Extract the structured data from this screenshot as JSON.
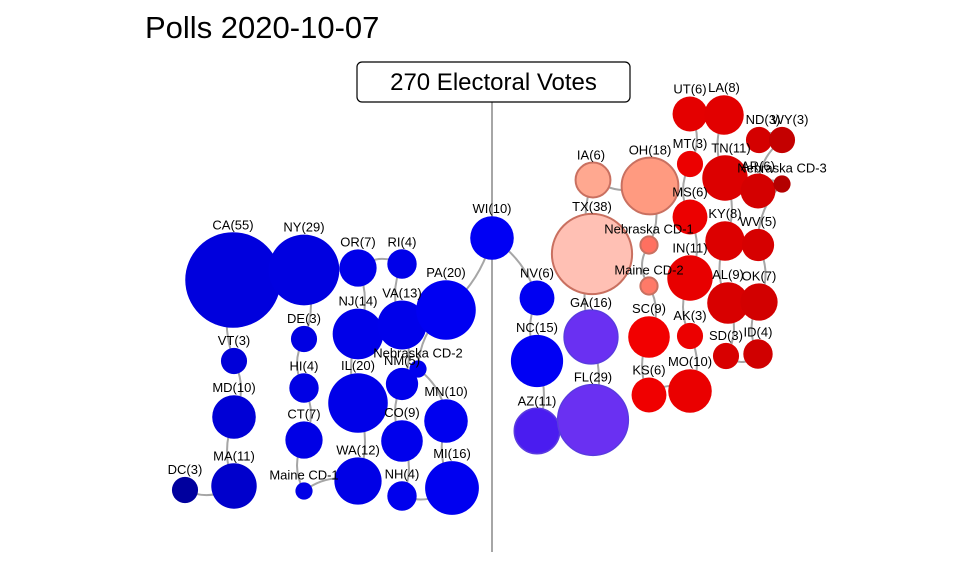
{
  "chart_data": {
    "type": "scatter",
    "title": "Polls 2020-10-07",
    "annotation": "270 Electoral Votes",
    "grid": false,
    "legend": "none",
    "colors": {
      "connector": "#a6a6a6",
      "midline": "#a6a6a6"
    },
    "states": [
      {
        "label": "DC(3)",
        "ev": 3,
        "color": "#00009e"
      },
      {
        "label": "MA(11)",
        "ev": 11,
        "color": "#0000cc"
      },
      {
        "label": "MD(10)",
        "ev": 10,
        "color": "#0000d6"
      },
      {
        "label": "VT(3)",
        "ev": 3,
        "color": "#0000d9"
      },
      {
        "label": "CA(55)",
        "ev": 55,
        "color": "#0000dd"
      },
      {
        "label": "NY(29)",
        "ev": 29,
        "color": "#0000e0"
      },
      {
        "label": "DE(3)",
        "ev": 3,
        "color": "#0000e2"
      },
      {
        "label": "HI(4)",
        "ev": 4,
        "color": "#0000e4"
      },
      {
        "label": "CT(7)",
        "ev": 7,
        "color": "#0000e5"
      },
      {
        "label": "Maine CD-1",
        "ev": 1,
        "color": "#0000e6"
      },
      {
        "label": "WA(12)",
        "ev": 12,
        "color": "#0000e6"
      },
      {
        "label": "IL(20)",
        "ev": 20,
        "color": "#0000e8"
      },
      {
        "label": "NJ(14)",
        "ev": 14,
        "color": "#0000e8"
      },
      {
        "label": "OR(7)",
        "ev": 7,
        "color": "#0000e9"
      },
      {
        "label": "RI(4)",
        "ev": 4,
        "color": "#0000e9"
      },
      {
        "label": "VA(13)",
        "ev": 13,
        "color": "#0000ea"
      },
      {
        "label": "NM(5)",
        "ev": 5,
        "color": "#0000eb"
      },
      {
        "label": "CO(9)",
        "ev": 9,
        "color": "#0000ec"
      },
      {
        "label": "NH(4)",
        "ev": 4,
        "color": "#0000ed"
      },
      {
        "label": "Nebraska CD-2",
        "ev": 1,
        "color": "#0000ee"
      },
      {
        "label": "MN(10)",
        "ev": 10,
        "color": "#0000ef"
      },
      {
        "label": "MI(16)",
        "ev": 16,
        "color": "#0000f0"
      },
      {
        "label": "PA(20)",
        "ev": 20,
        "color": "#0000f2"
      },
      {
        "label": "WI(10)",
        "ev": 10,
        "color": "#0000f4"
      },
      {
        "label": "NV(6)",
        "ev": 6,
        "color": "#0000f2"
      },
      {
        "label": "NC(15)",
        "ev": 15,
        "color": "#0000f4"
      },
      {
        "label": "AZ(11)",
        "ev": 11,
        "color": "#4a1cf0"
      },
      {
        "label": "GA(16)",
        "ev": 16,
        "color": "#6a30f2"
      },
      {
        "label": "FL(29)",
        "ev": 29,
        "color": "#6a30f2"
      },
      {
        "label": "TX(38)",
        "ev": 38,
        "color": "#ffc0b4"
      },
      {
        "label": "IA(6)",
        "ev": 6,
        "color": "#ffa890"
      },
      {
        "label": "OH(18)",
        "ev": 18,
        "color": "#ff9a80"
      },
      {
        "label": "Nebraska CD-1",
        "ev": 1,
        "color": "#ff7060"
      },
      {
        "label": "Maine CD-2",
        "ev": 1,
        "color": "#ff7a68"
      },
      {
        "label": "SC(9)",
        "ev": 9,
        "color": "#f20000"
      },
      {
        "label": "KS(6)",
        "ev": 6,
        "color": "#f00000"
      },
      {
        "label": "MT(3)",
        "ev": 3,
        "color": "#ec0000"
      },
      {
        "label": "MS(6)",
        "ev": 6,
        "color": "#ec0000"
      },
      {
        "label": "IN(11)",
        "ev": 11,
        "color": "#e80000"
      },
      {
        "label": "AK(3)",
        "ev": 3,
        "color": "#ec0000"
      },
      {
        "label": "MO(10)",
        "ev": 10,
        "color": "#ea0000"
      },
      {
        "label": "UT(6)",
        "ev": 6,
        "color": "#e40000"
      },
      {
        "label": "LA(8)",
        "ev": 8,
        "color": "#e20000"
      },
      {
        "label": "TN(11)",
        "ev": 11,
        "color": "#dc0000"
      },
      {
        "label": "KY(8)",
        "ev": 8,
        "color": "#dc0000"
      },
      {
        "label": "AL(9)",
        "ev": 9,
        "color": "#d80000"
      },
      {
        "label": "SD(3)",
        "ev": 3,
        "color": "#d80000"
      },
      {
        "label": "ND(3)",
        "ev": 3,
        "color": "#d40000"
      },
      {
        "label": "WY(3)",
        "ev": 3,
        "color": "#c40000"
      },
      {
        "label": "AR(6)",
        "ev": 6,
        "color": "#d40000"
      },
      {
        "label": "Nebraska CD-3",
        "ev": 1,
        "color": "#b40000"
      },
      {
        "label": "WV(5)",
        "ev": 5,
        "color": "#d60000"
      },
      {
        "label": "OK(7)",
        "ev": 7,
        "color": "#d20000"
      },
      {
        "label": "ID(4)",
        "ev": 4,
        "color": "#d00000"
      }
    ]
  }
}
